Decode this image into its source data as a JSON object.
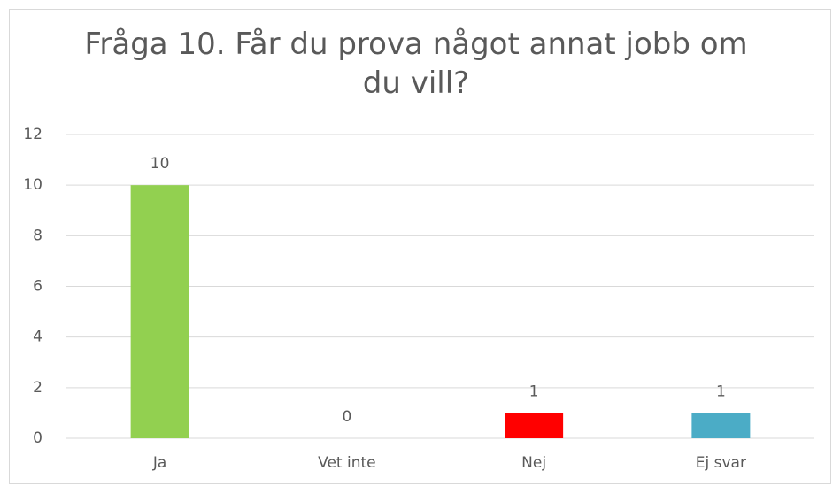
{
  "chart_data": {
    "type": "bar",
    "title": "Fråga 10. Får du prova något annat jobb om du vill?",
    "categories": [
      "Ja",
      "Vet inte",
      "Nej",
      "Ej svar"
    ],
    "values": [
      10,
      0,
      1,
      1
    ],
    "colors": [
      "#92d050",
      null,
      "#ff0000",
      "#4bacc6"
    ],
    "ylim": [
      0,
      12
    ],
    "yticks": [
      0,
      2,
      4,
      6,
      8,
      10,
      12
    ],
    "grid": true
  }
}
